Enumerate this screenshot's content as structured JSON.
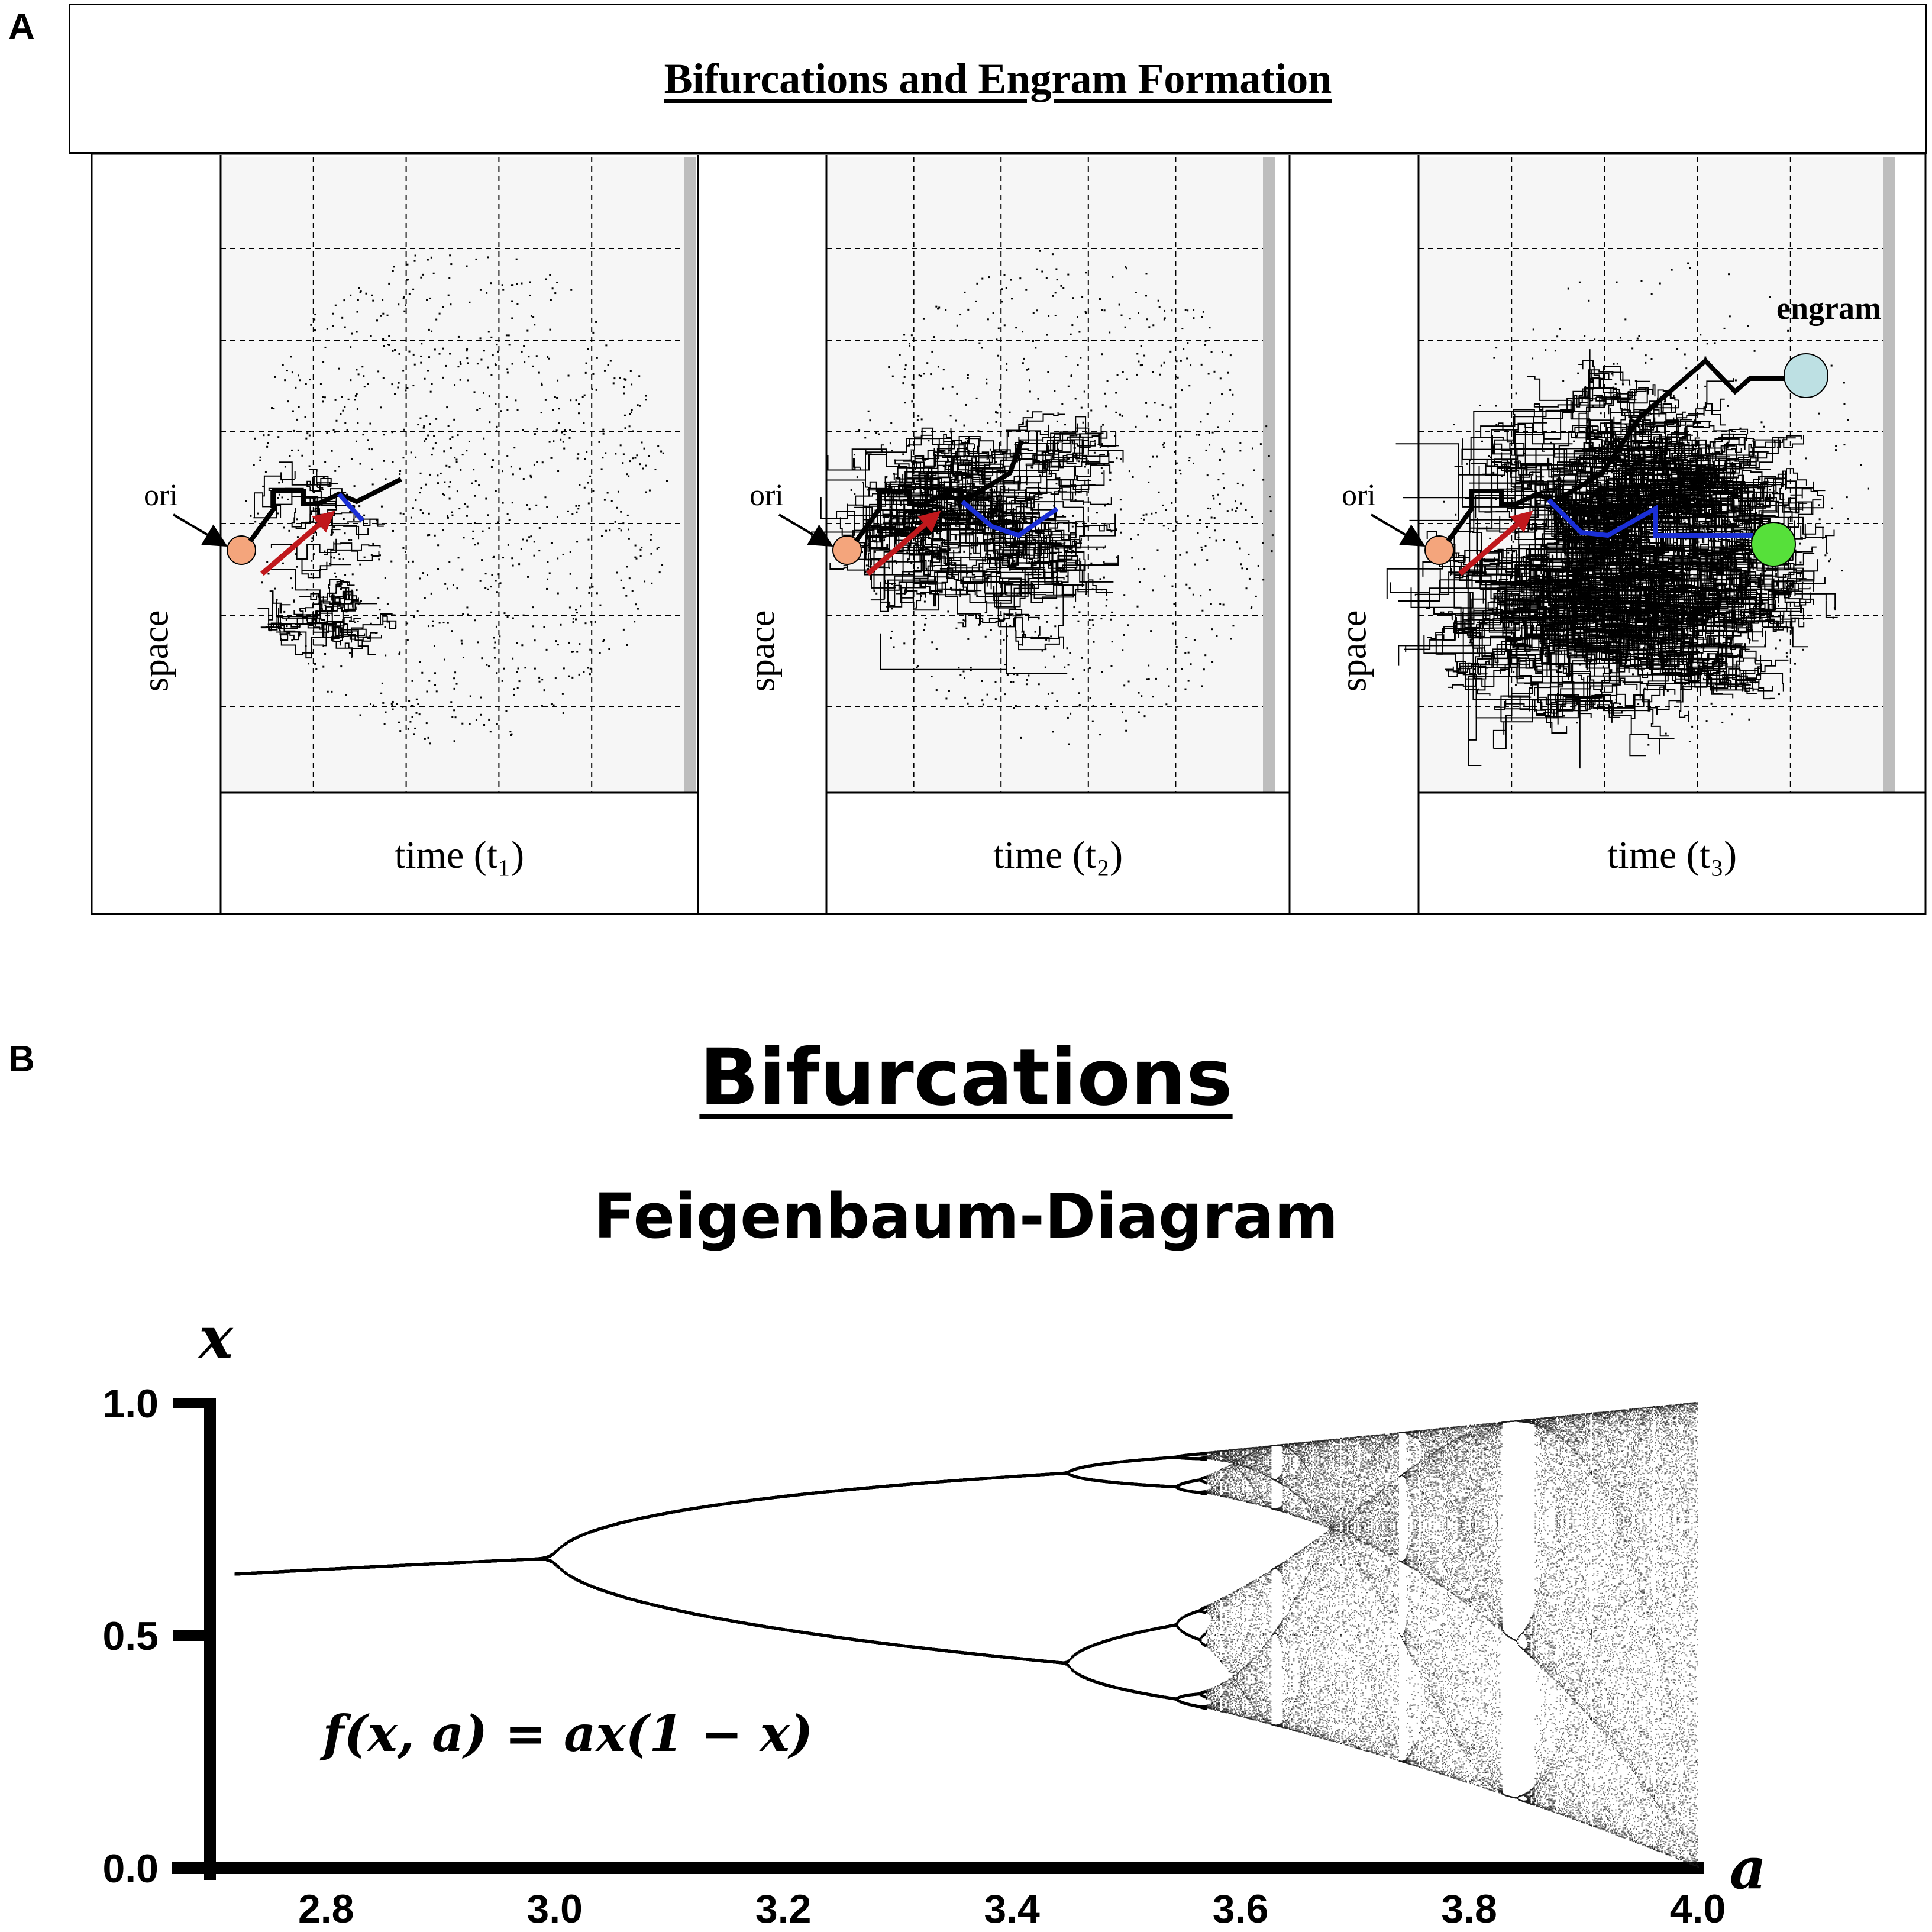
{
  "panel_a": {
    "letter": "A",
    "title": "Bifurcations and Engram Formation",
    "y_label": "space",
    "origin_label": "ori",
    "engram_label": "engram",
    "time_labels": [
      "time (t₁)",
      "time (t₂)",
      "time (t₃)"
    ],
    "colors": {
      "origin_node": "#f4a57c",
      "engram_node_cyan": "#bde0e3",
      "engram_node_green": "#56e03a",
      "blue_path": "#1a2fd6",
      "red_arrow": "#c0181c",
      "grid_line": "#000000",
      "panel_bg": "#f6f6f6"
    }
  },
  "panel_b": {
    "letter": "B",
    "title": "Bifurcations",
    "subtitle": "Feigenbaum-Diagram",
    "equation": "f(x, a) = ax(1 − x)",
    "chart_data": {
      "type": "scatter",
      "title": "Feigenbaum-Diagram",
      "xlabel": "a",
      "ylabel": "x",
      "xlim": [
        2.7,
        4.0
      ],
      "ylim": [
        0.0,
        1.0
      ],
      "x_ticks": [
        "2.8",
        "3.0",
        "3.2",
        "3.4",
        "3.6",
        "3.8",
        "4.0"
      ],
      "y_ticks": [
        "0.0",
        "0.5",
        "1.0"
      ],
      "function": "logistic map x -> a x (1 - x)",
      "bifurcation_points": [
        {
          "a": 3.0,
          "x": 0.667
        },
        {
          "a": 3.449,
          "x": [
            0.44,
            0.85
          ]
        }
      ],
      "chaos_onset_a": 3.57,
      "grid": false
    }
  }
}
